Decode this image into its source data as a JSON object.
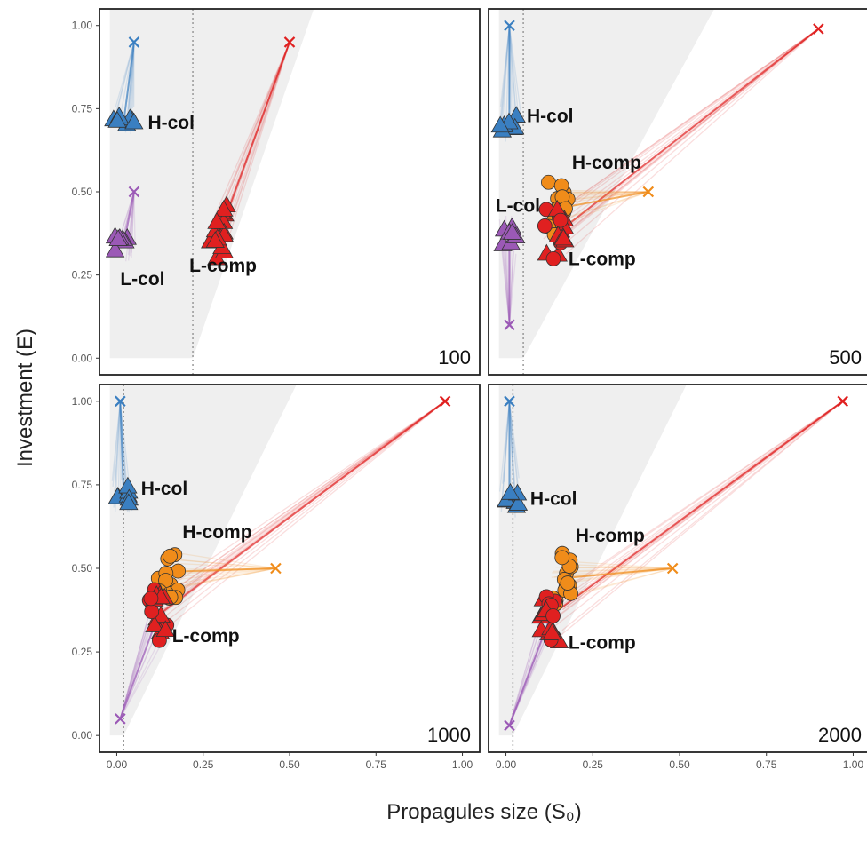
{
  "chart_data": {
    "type": "scatter",
    "xlabel": "Propagules size (S₀)",
    "ylabel": "Investment (E)",
    "xlim": [
      -0.05,
      1.05
    ],
    "ylim": [
      -0.05,
      1.05
    ],
    "x_ticks": [
      "0.00",
      "0.25",
      "0.50",
      "0.75",
      "1.00"
    ],
    "y_ticks": [
      "0.00",
      "0.25",
      "0.50",
      "0.75",
      "1.00"
    ],
    "colors": {
      "H-col": "#3a7fc1",
      "L-col": "#9b59b6",
      "H-comp": "#f08c1a",
      "L-comp": "#e02020"
    },
    "panels": [
      {
        "label": "100",
        "vline_x": 0.22,
        "shade": [
          [
            -0.02,
            0.0
          ],
          [
            0.22,
            0.0
          ],
          [
            0.57,
            1.05
          ],
          [
            -0.02,
            1.05
          ]
        ],
        "starts": [
          {
            "group": "H-col",
            "x": 0.05,
            "y": 0.95
          },
          {
            "group": "L-col",
            "x": 0.05,
            "y": 0.5
          },
          {
            "group": "L-comp",
            "x": 0.5,
            "y": 0.95
          }
        ],
        "clusters": [
          {
            "group": "H-col",
            "x": 0.02,
            "y": 0.71
          },
          {
            "group": "L-col",
            "x": 0.02,
            "y": 0.34
          },
          {
            "group": "L-comp",
            "x": 0.3,
            "y": 0.38
          }
        ],
        "labels": [
          {
            "text": "H-col",
            "x": 0.09,
            "y": 0.69
          },
          {
            "text": "L-col",
            "x": 0.01,
            "y": 0.22
          },
          {
            "text": "L-comp",
            "x": 0.21,
            "y": 0.26
          }
        ]
      },
      {
        "label": "500",
        "vline_x": 0.05,
        "shade": [
          [
            -0.02,
            0.0
          ],
          [
            0.05,
            0.0
          ],
          [
            0.6,
            1.05
          ],
          [
            -0.02,
            1.05
          ]
        ],
        "starts": [
          {
            "group": "H-col",
            "x": 0.01,
            "y": 1.0
          },
          {
            "group": "L-col",
            "x": 0.01,
            "y": 0.1
          },
          {
            "group": "L-comp",
            "x": 0.9,
            "y": 0.99
          },
          {
            "group": "H-comp",
            "x": 0.41,
            "y": 0.5
          }
        ],
        "clusters": [
          {
            "group": "H-col",
            "x": 0.01,
            "y": 0.71
          },
          {
            "group": "L-col",
            "x": 0.01,
            "y": 0.37
          },
          {
            "group": "H-comp",
            "x": 0.15,
            "y": 0.45
          },
          {
            "group": "L-comp",
            "x": 0.14,
            "y": 0.37
          }
        ],
        "labels": [
          {
            "text": "H-col",
            "x": 0.06,
            "y": 0.71
          },
          {
            "text": "H-comp",
            "x": 0.19,
            "y": 0.57
          },
          {
            "text": "L-col",
            "x": -0.03,
            "y": 0.44
          },
          {
            "text": "L-comp",
            "x": 0.18,
            "y": 0.28
          }
        ]
      },
      {
        "label": "1000",
        "vline_x": 0.02,
        "shade": [
          [
            -0.02,
            0.0
          ],
          [
            0.02,
            0.0
          ],
          [
            0.52,
            1.05
          ],
          [
            -0.02,
            1.05
          ]
        ],
        "starts": [
          {
            "group": "H-col",
            "x": 0.01,
            "y": 1.0
          },
          {
            "group": "L-col",
            "x": 0.01,
            "y": 0.05
          },
          {
            "group": "L-comp",
            "x": 0.95,
            "y": 1.0
          },
          {
            "group": "H-comp",
            "x": 0.46,
            "y": 0.5
          }
        ],
        "clusters": [
          {
            "group": "H-col",
            "x": 0.02,
            "y": 0.72
          },
          {
            "group": "H-comp",
            "x": 0.15,
            "y": 0.49
          },
          {
            "group": "L-comp",
            "x": 0.12,
            "y": 0.36
          }
        ],
        "labels": [
          {
            "text": "H-col",
            "x": 0.07,
            "y": 0.72
          },
          {
            "text": "H-comp",
            "x": 0.19,
            "y": 0.59
          },
          {
            "text": "L-comp",
            "x": 0.16,
            "y": 0.28
          }
        ]
      },
      {
        "label": "2000",
        "vline_x": 0.02,
        "shade": [
          [
            -0.02,
            0.0
          ],
          [
            0.02,
            0.0
          ],
          [
            0.52,
            1.05
          ],
          [
            -0.02,
            1.05
          ]
        ],
        "starts": [
          {
            "group": "H-col",
            "x": 0.01,
            "y": 1.0
          },
          {
            "group": "L-col",
            "x": 0.01,
            "y": 0.03
          },
          {
            "group": "L-comp",
            "x": 0.97,
            "y": 1.0
          },
          {
            "group": "H-comp",
            "x": 0.48,
            "y": 0.5
          }
        ],
        "clusters": [
          {
            "group": "H-col",
            "x": 0.01,
            "y": 0.71
          },
          {
            "group": "H-comp",
            "x": 0.16,
            "y": 0.47
          },
          {
            "group": "L-comp",
            "x": 0.13,
            "y": 0.36
          }
        ],
        "labels": [
          {
            "text": "H-col",
            "x": 0.07,
            "y": 0.69
          },
          {
            "text": "H-comp",
            "x": 0.2,
            "y": 0.58
          },
          {
            "text": "L-comp",
            "x": 0.18,
            "y": 0.26
          }
        ]
      }
    ]
  }
}
